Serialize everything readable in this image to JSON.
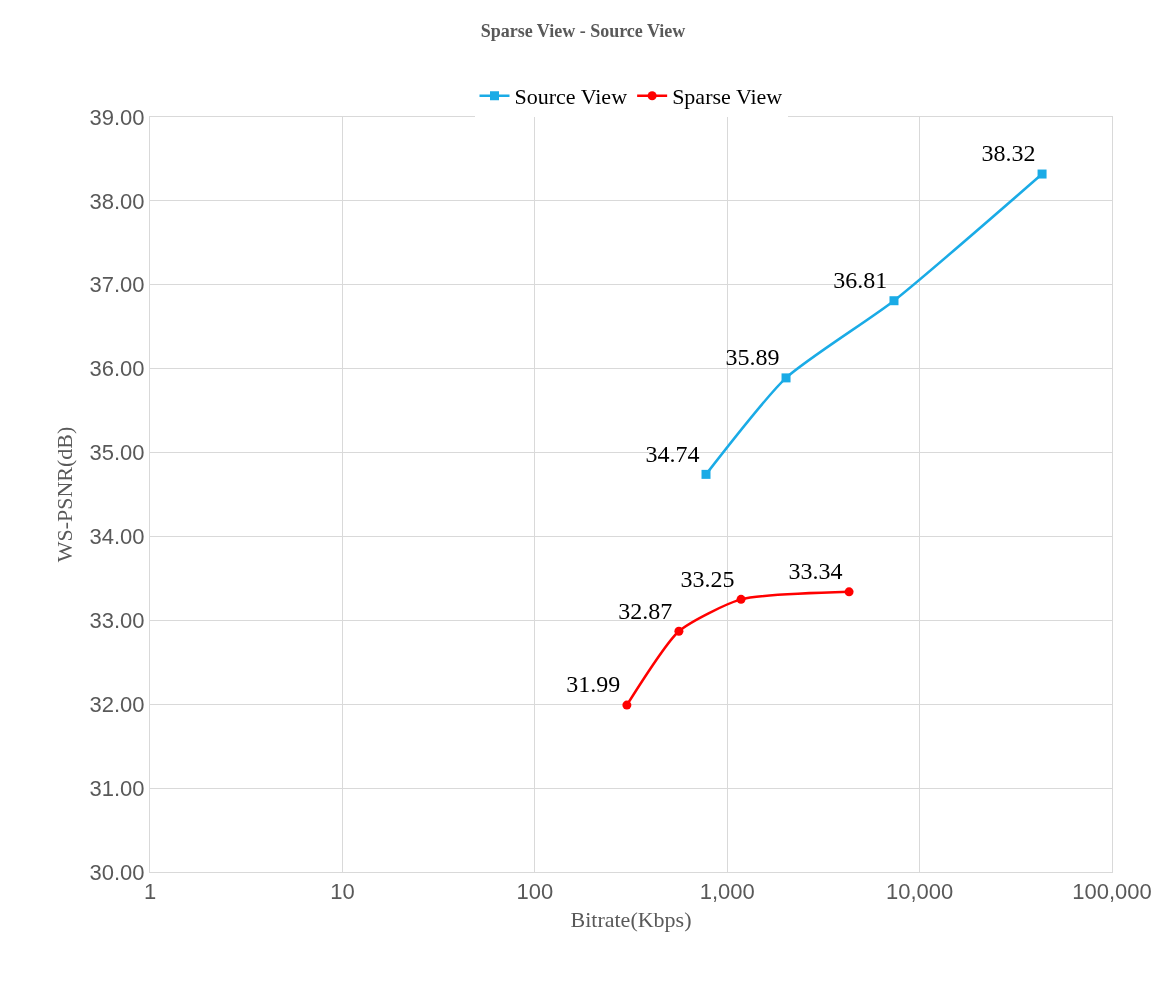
{
  "chart_data": {
    "type": "line",
    "title": "Sparse View - Source View",
    "xlabel": "Bitrate(Kbps)",
    "ylabel": "WS-PSNR(dB)",
    "series": [
      {
        "name": "Source View",
        "color": "#1aabe6",
        "marker": "square",
        "x": [
          776,
          2022,
          7360,
          43300
        ],
        "values": [
          34.74,
          35.89,
          36.81,
          38.32
        ]
      },
      {
        "name": "Sparse View",
        "color": "#ff0000",
        "marker": "circle",
        "x": [
          301,
          561,
          1180,
          4300
        ],
        "values": [
          31.99,
          32.87,
          33.25,
          33.34
        ]
      }
    ],
    "log": "x",
    "xlim": [
      1,
      100000
    ],
    "xticks": [
      1,
      10,
      100,
      {
        "value": 1000,
        "label": "1,000"
      },
      {
        "value": 10000,
        "label": "10,000"
      },
      {
        "value": 100000,
        "label": "100,000"
      }
    ],
    "ylim": [
      30,
      39
    ],
    "yticks": [
      {
        "value": 30,
        "label": "30.00"
      },
      {
        "value": 31,
        "label": "31.00"
      },
      {
        "value": 32,
        "label": "32.00"
      },
      {
        "value": 33,
        "label": "33.00"
      },
      {
        "value": 34,
        "label": "34.00"
      },
      {
        "value": 35,
        "label": "35.00"
      },
      {
        "value": 36,
        "label": "36.00"
      },
      {
        "value": 37,
        "label": "37.00"
      },
      {
        "value": 38,
        "label": "38.00"
      },
      {
        "value": 39,
        "label": "39.00"
      }
    ],
    "grid": true,
    "legend": "top",
    "data_labels": true,
    "line_style": "solid"
  }
}
